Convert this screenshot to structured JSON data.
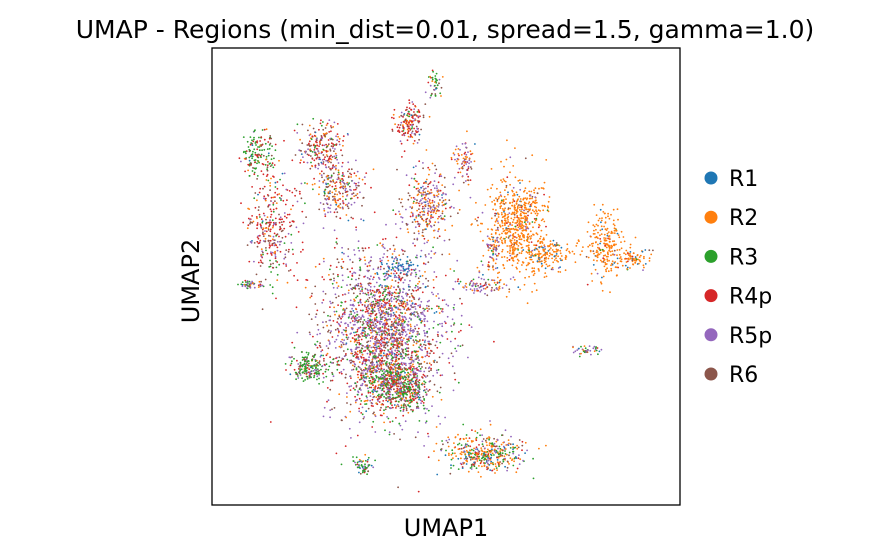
{
  "chart_data": {
    "type": "scatter",
    "title": "UMAP - Regions (min_dist=0.01, spread=1.5, gamma=1.0)",
    "xlabel": "UMAP1",
    "ylabel": "UMAP2",
    "xticks": [],
    "yticks": [],
    "grid": false,
    "legend_position": "right",
    "series": [
      {
        "name": "R1",
        "color": "#1f77b4"
      },
      {
        "name": "R2",
        "color": "#ff7f0e"
      },
      {
        "name": "R3",
        "color": "#2ca02c"
      },
      {
        "name": "R4p",
        "color": "#d62728"
      },
      {
        "name": "R5p",
        "color": "#9467bd"
      },
      {
        "name": "R6",
        "color": "#8c564b"
      }
    ],
    "clusters": [
      {
        "cx": 0.36,
        "cy": 0.63,
        "rx": 0.12,
        "ry": 0.17,
        "n": 2200,
        "w": [
          0.03,
          0.12,
          0.1,
          0.2,
          0.35,
          0.2
        ]
      },
      {
        "cx": 0.38,
        "cy": 0.74,
        "rx": 0.06,
        "ry": 0.06,
        "n": 500,
        "w": [
          0.02,
          0.08,
          0.35,
          0.25,
          0.15,
          0.15
        ]
      },
      {
        "cx": 0.4,
        "cy": 0.48,
        "rx": 0.04,
        "ry": 0.02,
        "n": 60,
        "w": [
          0.9,
          0.0,
          0.0,
          0.0,
          0.1,
          0.0
        ]
      },
      {
        "cx": 0.19,
        "cy": 0.71,
        "rx": 0.04,
        "ry": 0.03,
        "n": 180,
        "w": [
          0.02,
          0.05,
          0.55,
          0.13,
          0.1,
          0.15
        ]
      },
      {
        "cx": 0.42,
        "cy": 0.77,
        "rx": 0.03,
        "ry": 0.04,
        "n": 120,
        "w": [
          0.02,
          0.1,
          0.35,
          0.2,
          0.18,
          0.15
        ]
      },
      {
        "cx": 0.31,
        "cy": 0.94,
        "rx": 0.02,
        "ry": 0.02,
        "n": 60,
        "w": [
          0.05,
          0.05,
          0.6,
          0.05,
          0.15,
          0.1
        ]
      },
      {
        "cx": 0.59,
        "cy": 0.91,
        "rx": 0.08,
        "ry": 0.04,
        "n": 420,
        "w": [
          0.08,
          0.35,
          0.2,
          0.12,
          0.12,
          0.13
        ]
      },
      {
        "cx": 0.66,
        "cy": 0.38,
        "rx": 0.06,
        "ry": 0.1,
        "n": 650,
        "w": [
          0.03,
          0.85,
          0.02,
          0.03,
          0.04,
          0.03
        ]
      },
      {
        "cx": 0.73,
        "cy": 0.45,
        "rx": 0.05,
        "ry": 0.03,
        "n": 160,
        "w": [
          0.1,
          0.8,
          0.02,
          0.03,
          0.02,
          0.03
        ]
      },
      {
        "cx": 0.86,
        "cy": 0.43,
        "rx": 0.04,
        "ry": 0.07,
        "n": 220,
        "w": [
          0.05,
          0.85,
          0.02,
          0.03,
          0.02,
          0.03
        ]
      },
      {
        "cx": 0.92,
        "cy": 0.46,
        "rx": 0.04,
        "ry": 0.02,
        "n": 80,
        "w": [
          0.1,
          0.75,
          0.02,
          0.05,
          0.05,
          0.03
        ]
      },
      {
        "cx": 0.82,
        "cy": 0.67,
        "rx": 0.03,
        "ry": 0.01,
        "n": 40,
        "w": [
          0.1,
          0.1,
          0.2,
          0.1,
          0.45,
          0.05
        ]
      },
      {
        "cx": 0.08,
        "cy": 0.22,
        "rx": 0.04,
        "ry": 0.05,
        "n": 140,
        "w": [
          0.02,
          0.05,
          0.55,
          0.23,
          0.05,
          0.1
        ]
      },
      {
        "cx": 0.22,
        "cy": 0.2,
        "rx": 0.05,
        "ry": 0.05,
        "n": 220,
        "w": [
          0.02,
          0.15,
          0.1,
          0.35,
          0.18,
          0.2
        ]
      },
      {
        "cx": 0.42,
        "cy": 0.15,
        "rx": 0.03,
        "ry": 0.04,
        "n": 160,
        "w": [
          0.02,
          0.1,
          0.1,
          0.45,
          0.13,
          0.2
        ]
      },
      {
        "cx": 0.11,
        "cy": 0.38,
        "rx": 0.05,
        "ry": 0.12,
        "n": 320,
        "w": [
          0.02,
          0.1,
          0.1,
          0.45,
          0.15,
          0.18
        ]
      },
      {
        "cx": 0.26,
        "cy": 0.3,
        "rx": 0.05,
        "ry": 0.06,
        "n": 240,
        "w": [
          0.03,
          0.22,
          0.05,
          0.2,
          0.3,
          0.2
        ]
      },
      {
        "cx": 0.46,
        "cy": 0.34,
        "rx": 0.05,
        "ry": 0.08,
        "n": 300,
        "w": [
          0.03,
          0.3,
          0.03,
          0.17,
          0.27,
          0.2
        ]
      },
      {
        "cx": 0.54,
        "cy": 0.24,
        "rx": 0.02,
        "ry": 0.05,
        "n": 80,
        "w": [
          0.03,
          0.3,
          0.05,
          0.17,
          0.3,
          0.15
        ]
      },
      {
        "cx": 0.58,
        "cy": 0.52,
        "rx": 0.06,
        "ry": 0.02,
        "n": 90,
        "w": [
          0.05,
          0.25,
          0.05,
          0.1,
          0.4,
          0.15
        ]
      },
      {
        "cx": 0.61,
        "cy": 0.44,
        "rx": 0.02,
        "ry": 0.04,
        "n": 50,
        "w": [
          0.05,
          0.25,
          0.1,
          0.1,
          0.35,
          0.15
        ]
      },
      {
        "cx": 0.06,
        "cy": 0.52,
        "rx": 0.03,
        "ry": 0.01,
        "n": 50,
        "w": [
          0.05,
          0.05,
          0.3,
          0.1,
          0.4,
          0.1
        ]
      },
      {
        "cx": 0.47,
        "cy": 0.06,
        "rx": 0.02,
        "ry": 0.03,
        "n": 40,
        "w": [
          0.02,
          0.1,
          0.5,
          0.18,
          0.1,
          0.1
        ]
      }
    ],
    "legend_title": ""
  }
}
